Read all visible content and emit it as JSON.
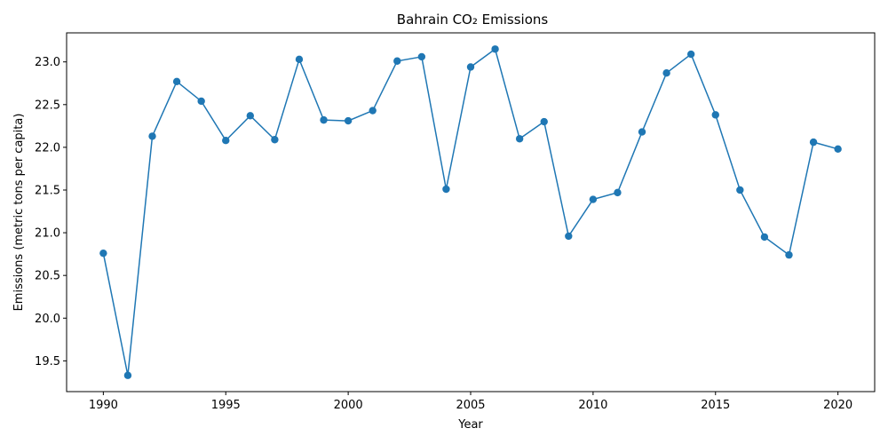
{
  "chart_data": {
    "type": "line",
    "title": "Bahrain CO₂ Emissions",
    "xlabel": "Year",
    "ylabel": "Emissions (metric tons per capita)",
    "xlim": [
      1988.5,
      2021.5
    ],
    "ylim": [
      19.14,
      23.34
    ],
    "x_ticks": [
      1990,
      1995,
      2000,
      2005,
      2010,
      2015,
      2020
    ],
    "y_ticks": [
      19.5,
      20.0,
      20.5,
      21.0,
      21.5,
      22.0,
      22.5,
      23.0
    ],
    "y_tick_labels": [
      "19.5",
      "20.0",
      "20.5",
      "21.0",
      "21.5",
      "22.0",
      "22.5",
      "23.0"
    ],
    "grid": false,
    "marker": "circle",
    "color": "#1f77b4",
    "series": [
      {
        "x": [
          1990,
          1991,
          1992,
          1993,
          1994,
          1995,
          1996,
          1997,
          1998,
          1999,
          2000,
          2001,
          2002,
          2003,
          2004,
          2005,
          2006,
          2007,
          2008,
          2009,
          2010,
          2011,
          2012,
          2013,
          2014,
          2015,
          2016,
          2017,
          2018,
          2019,
          2020
        ],
        "values": [
          20.76,
          19.33,
          22.13,
          22.77,
          22.54,
          22.08,
          22.37,
          22.09,
          23.03,
          22.32,
          22.31,
          22.43,
          23.01,
          23.06,
          21.51,
          22.94,
          23.15,
          22.1,
          22.3,
          20.96,
          21.39,
          21.47,
          22.18,
          22.87,
          23.09,
          22.38,
          21.5,
          20.95,
          20.74,
          22.06,
          21.98
        ]
      }
    ]
  }
}
